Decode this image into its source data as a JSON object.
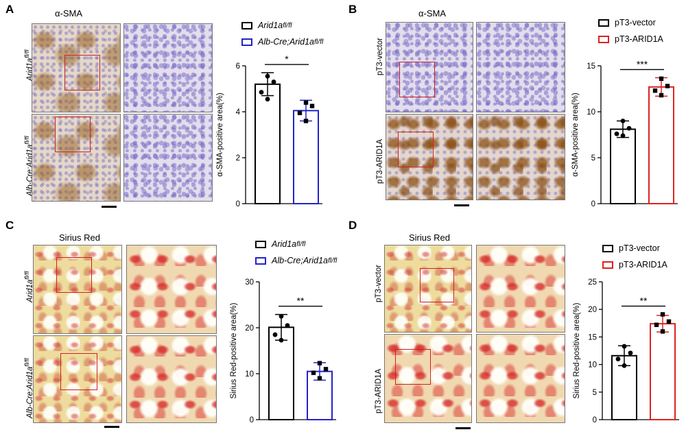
{
  "panels": [
    {
      "letter": "A",
      "stain": "α-SMA",
      "rows": [
        {
          "label": "Arid1a",
          "sup": "fl/fl"
        },
        {
          "label": "Alb-Cre;Arid1a",
          "sup": "fl/fl"
        }
      ],
      "legend": [
        {
          "label": "Arid1a",
          "sup": "fl/fl",
          "color": "#000000"
        },
        {
          "label": "Alb-Cre;Arid1a",
          "sup": "fl/fl",
          "color": "#2222cc"
        }
      ]
    },
    {
      "letter": "B",
      "stain": "α-SMA",
      "rows": [
        {
          "label": "pT3-vector",
          "sup": ""
        },
        {
          "label": "pT3-ARID1A",
          "sup": ""
        }
      ],
      "legend": [
        {
          "label": "pT3-vector",
          "sup": "",
          "color": "#000000"
        },
        {
          "label": "pT3-ARID1A",
          "sup": "",
          "color": "#dd2222"
        }
      ]
    },
    {
      "letter": "C",
      "stain": "Sirius Red",
      "rows": [
        {
          "label": "Arid1a",
          "sup": "fl/fl"
        },
        {
          "label": "Alb-Cre;Arid1a",
          "sup": "fl/fl"
        }
      ],
      "legend": [
        {
          "label": "Arid1a",
          "sup": "fl/fl",
          "color": "#000000"
        },
        {
          "label": "Alb-Cre;Arid1a",
          "sup": "fl/fl",
          "color": "#2222cc"
        }
      ]
    },
    {
      "letter": "D",
      "stain": "Sirius Red",
      "rows": [
        {
          "label": "pT3-vector",
          "sup": ""
        },
        {
          "label": "pT3-ARID1A",
          "sup": ""
        }
      ],
      "legend": [
        {
          "label": "pT3-vector",
          "sup": "",
          "color": "#000000"
        },
        {
          "label": "pT3-ARID1A",
          "sup": "",
          "color": "#dd2222"
        }
      ]
    }
  ],
  "chart_data": [
    {
      "type": "bar",
      "panel": "A",
      "categories": [
        "Arid1a fl/fl",
        "Alb-Cre;Arid1a fl/fl"
      ],
      "values": [
        5.2,
        4.05
      ],
      "errors": [
        0.5,
        0.45
      ],
      "points": [
        [
          5.55,
          5.3,
          4.85,
          4.55
        ],
        [
          4.4,
          4.25,
          3.95,
          3.6
        ]
      ],
      "colors": [
        "#000000",
        "#2222cc"
      ],
      "ylabel": "α-SMA-positive area(%)",
      "ylim": [
        0,
        6
      ],
      "yticks": [
        0,
        2,
        4,
        6
      ],
      "significance": "*"
    },
    {
      "type": "bar",
      "panel": "B",
      "categories": [
        "pT3-vector",
        "pT3-ARID1A"
      ],
      "values": [
        8.1,
        12.7
      ],
      "errors": [
        0.9,
        1.0
      ],
      "points": [
        [
          9.0,
          8.2,
          7.6,
          7.4
        ],
        [
          13.6,
          12.8,
          12.3,
          11.8
        ]
      ],
      "colors": [
        "#000000",
        "#dd2222"
      ],
      "ylabel": "α-SMA-positive area(%)",
      "ylim": [
        0,
        15
      ],
      "yticks": [
        0,
        5,
        10,
        15
      ],
      "significance": "***"
    },
    {
      "type": "bar",
      "panel": "C",
      "categories": [
        "Arid1a fl/fl",
        "Alb-Cre;Arid1a fl/fl"
      ],
      "values": [
        20.1,
        10.5
      ],
      "errors": [
        2.8,
        1.9
      ],
      "points": [
        [
          22.5,
          20.5,
          18.5,
          17.3
        ],
        [
          12.3,
          11.0,
          10.2,
          9.0
        ]
      ],
      "colors": [
        "#000000",
        "#2222cc"
      ],
      "ylabel": "Sirius Red-positive area(%)",
      "ylim": [
        0,
        30
      ],
      "yticks": [
        0,
        10,
        20,
        30
      ],
      "significance": "**"
    },
    {
      "type": "bar",
      "panel": "D",
      "categories": [
        "pT3-vector",
        "pT3-ARID1A"
      ],
      "values": [
        11.6,
        17.4
      ],
      "errors": [
        1.8,
        1.5
      ],
      "points": [
        [
          13.3,
          12.1,
          11.0,
          9.8
        ],
        [
          19.1,
          17.8,
          17.2,
          16.0
        ]
      ],
      "colors": [
        "#000000",
        "#dd2222"
      ],
      "ylabel": "Sirius Red-positive area(%)",
      "ylim": [
        0,
        25
      ],
      "yticks": [
        0,
        5,
        10,
        15,
        20,
        25
      ],
      "significance": "**"
    }
  ]
}
